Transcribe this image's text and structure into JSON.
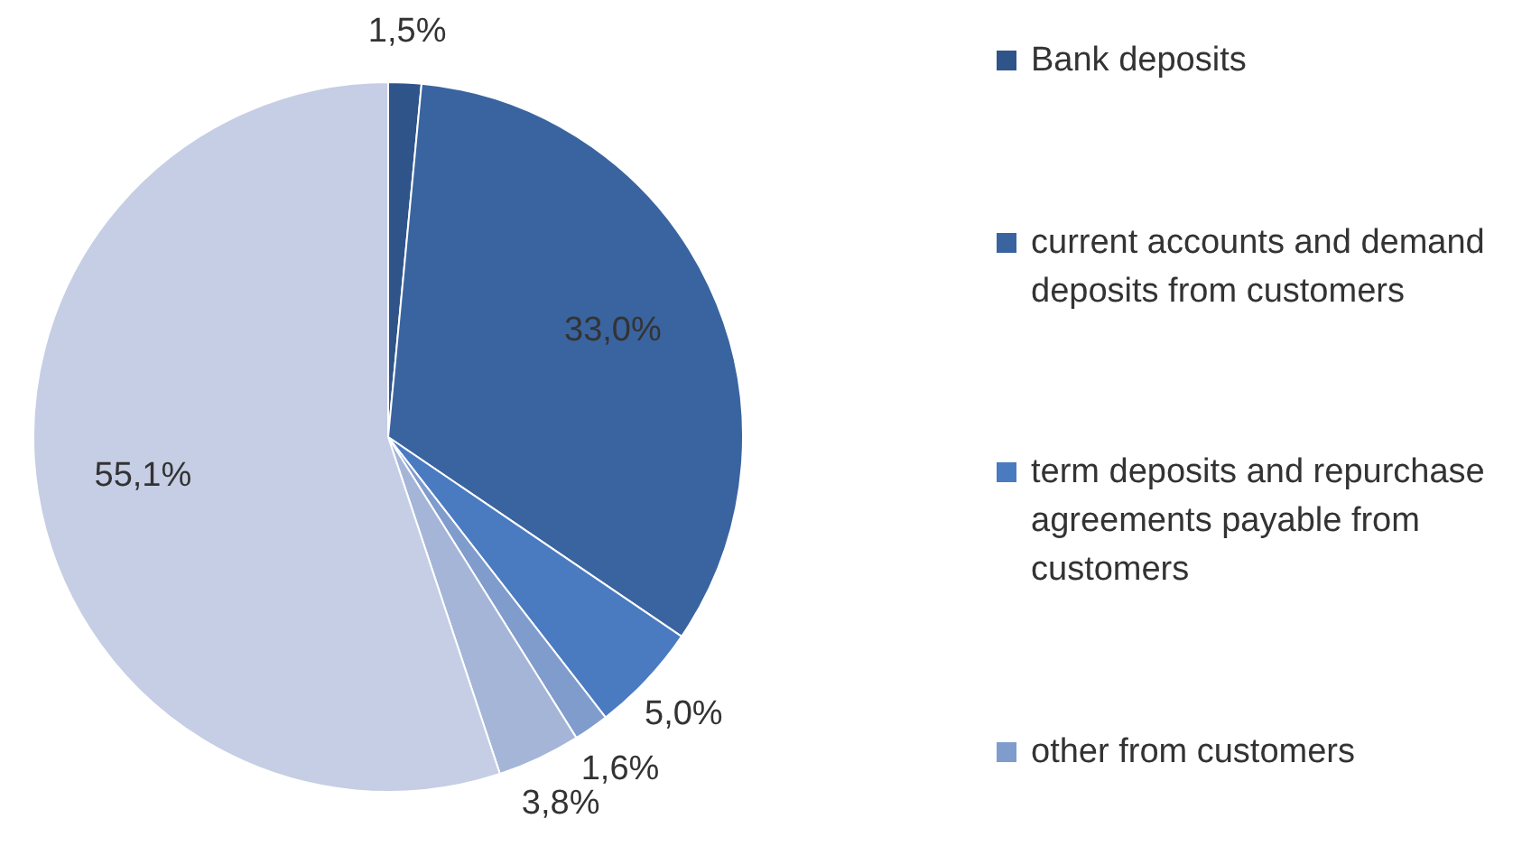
{
  "chart_data": {
    "type": "pie",
    "categories": [
      "Bank deposits",
      "current accounts and demand deposits from customers",
      "term deposits and repurchase agreements payable from customers",
      "other from customers",
      null,
      null
    ],
    "values": [
      1.5,
      33.0,
      5.0,
      1.6,
      3.8,
      55.1
    ],
    "colors": [
      "#2f5489",
      "#3a64a0",
      "#4a7bc1",
      "#7f9ccd",
      "#a4b5d8",
      "#c5cee4"
    ],
    "value_labels": [
      "1,5%",
      "33,0%",
      "5,0%",
      "1,6%",
      "3,8%",
      "55,1%"
    ],
    "legend": "right"
  }
}
